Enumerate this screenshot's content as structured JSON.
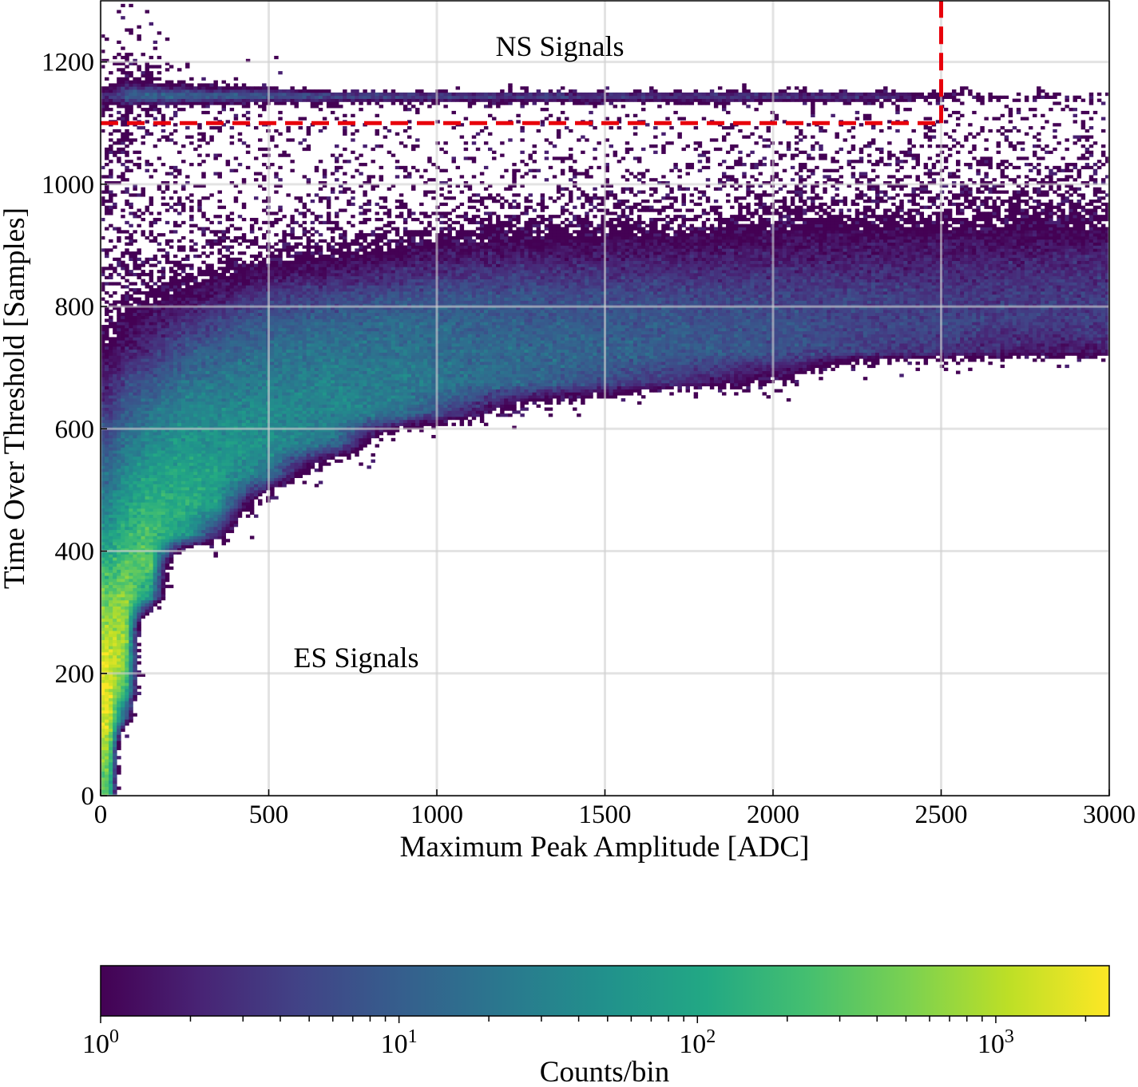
{
  "chart_data": {
    "type": "heatmap",
    "xlabel": "Maximum Peak Amplitude [ADC]",
    "ylabel": "Time Over Threshold [Samples]",
    "xlim": [
      0,
      3000
    ],
    "ylim": [
      0,
      1300
    ],
    "xticks": [
      0,
      500,
      1000,
      1500,
      2000,
      2500,
      3000
    ],
    "yticks": [
      0,
      200,
      400,
      600,
      800,
      1000,
      1200
    ],
    "grid": true,
    "annotations": [
      {
        "text": "NS Signals",
        "x": 1370,
        "y": 1225
      },
      {
        "text": "ES Signals",
        "x": 760,
        "y": 225
      }
    ],
    "cut_lines": {
      "color": "#e8000b",
      "style": "dashed",
      "horizontal": {
        "y": 1100,
        "x_from": 0,
        "x_to": 2500
      },
      "vertical": {
        "x": 2500,
        "y_from": 1100,
        "y_to": 1300
      }
    },
    "colorbar": {
      "label": "Counts/bin",
      "scale": "log",
      "range": [
        1,
        2400
      ],
      "ticks": [
        {
          "value": 1,
          "base": "10",
          "exp": "0"
        },
        {
          "value": 10,
          "base": "10",
          "exp": "1"
        },
        {
          "value": 100,
          "base": "10",
          "exp": "2"
        },
        {
          "value": 1000,
          "base": "10",
          "exp": "3"
        }
      ],
      "colormap": "viridis",
      "colormap_stops": [
        "#440154",
        "#482475",
        "#414487",
        "#355f8d",
        "#2a788e",
        "#21918c",
        "#22a884",
        "#44bf70",
        "#7ad151",
        "#bddf26",
        "#fde725"
      ]
    },
    "x_centers": [
      25,
      75,
      150,
      250,
      350,
      500,
      700,
      900,
      1100,
      1300,
      1500,
      1700,
      1900,
      2100,
      2300,
      2500,
      2700,
      2900
    ],
    "y_centers": [
      25,
      75,
      125,
      175,
      225,
      275,
      325,
      375,
      425,
      475,
      525,
      575,
      625,
      675,
      725,
      775,
      825,
      875,
      925,
      975,
      1025,
      1075,
      1125,
      1145,
      1170,
      1250
    ],
    "z_counts_per_bin": [
      [
        300,
        0,
        0,
        0,
        0,
        0,
        0,
        0,
        0,
        0,
        0,
        0,
        0,
        0,
        0,
        0,
        0,
        0
      ],
      [
        800,
        0,
        0,
        0,
        0,
        0,
        0,
        0,
        0,
        0,
        0,
        0,
        0,
        0,
        0,
        0,
        0,
        0
      ],
      [
        1500,
        5,
        0,
        0,
        0,
        0,
        0,
        0,
        0,
        0,
        0,
        0,
        0,
        0,
        0,
        0,
        0,
        0
      ],
      [
        1800,
        200,
        0,
        0,
        0,
        0,
        0,
        0,
        0,
        0,
        0,
        0,
        0,
        0,
        0,
        0,
        0,
        0
      ],
      [
        1500,
        600,
        0,
        0,
        0,
        0,
        0,
        0,
        0,
        0,
        0,
        0,
        0,
        0,
        0,
        0,
        0,
        0
      ],
      [
        900,
        800,
        0,
        0,
        0,
        0,
        0,
        0,
        0,
        0,
        0,
        0,
        0,
        0,
        0,
        0,
        0,
        0
      ],
      [
        400,
        600,
        50,
        0,
        0,
        0,
        0,
        0,
        0,
        0,
        0,
        0,
        0,
        0,
        0,
        0,
        0,
        0
      ],
      [
        150,
        300,
        300,
        0,
        0,
        0,
        0,
        0,
        0,
        0,
        0,
        0,
        0,
        0,
        0,
        0,
        0,
        0
      ],
      [
        60,
        150,
        250,
        60,
        2,
        0,
        0,
        0,
        0,
        0,
        0,
        0,
        0,
        0,
        0,
        0,
        0,
        0
      ],
      [
        30,
        80,
        150,
        150,
        60,
        0.05,
        0,
        0,
        0,
        0,
        0,
        0,
        0,
        0,
        0,
        0,
        0,
        0
      ],
      [
        15,
        40,
        80,
        100,
        80,
        20,
        0.02,
        0,
        0,
        0,
        0,
        0,
        0,
        0,
        0,
        0,
        0,
        0
      ],
      [
        8,
        20,
        40,
        60,
        55,
        50,
        15,
        0.02,
        0,
        0,
        0,
        0,
        0,
        0,
        0,
        0,
        0,
        0
      ],
      [
        4,
        10,
        20,
        35,
        35,
        40,
        35,
        18,
        2,
        0.1,
        0.02,
        0,
        0,
        0,
        0,
        0,
        0,
        0
      ],
      [
        2,
        5,
        8,
        18,
        22,
        28,
        30,
        25,
        18,
        12,
        6,
        3,
        1,
        0.3,
        0,
        0,
        0,
        0
      ],
      [
        1,
        2,
        3,
        8,
        12,
        18,
        20,
        20,
        16,
        14,
        12,
        10,
        8,
        6,
        4,
        3,
        2,
        1.5
      ],
      [
        0.6,
        1,
        1.5,
        3,
        5,
        9,
        12,
        14,
        12,
        10,
        9,
        8,
        7,
        6,
        5,
        5,
        4,
        4
      ],
      [
        0.4,
        0.6,
        0.7,
        1,
        1.5,
        3,
        4,
        6,
        6,
        6,
        5,
        5,
        4.5,
        4,
        4,
        3.5,
        3.5,
        3.5
      ],
      [
        0.3,
        0.4,
        0.4,
        0.5,
        0.5,
        0.8,
        1,
        1.5,
        2,
        2,
        2,
        2,
        2,
        2,
        2,
        2,
        2,
        2.2
      ],
      [
        0.3,
        0.3,
        0.3,
        0.3,
        0.3,
        0.3,
        0.4,
        0.5,
        0.6,
        0.7,
        0.8,
        0.8,
        0.9,
        1,
        1,
        1,
        1,
        1
      ],
      [
        0.3,
        0.3,
        0.2,
        0.2,
        0.2,
        0.2,
        0.25,
        0.3,
        0.3,
        0.3,
        0.35,
        0.4,
        0.4,
        0.5,
        0.5,
        0.5,
        0.5,
        0.5
      ],
      [
        0.3,
        0.3,
        0.2,
        0.2,
        0.2,
        0.15,
        0.15,
        0.15,
        0.2,
        0.2,
        0.2,
        0.2,
        0.25,
        0.25,
        0.3,
        0.3,
        0.3,
        0.3
      ],
      [
        0.3,
        0.5,
        0.2,
        0.2,
        0.2,
        0.15,
        0.1,
        0.1,
        0.1,
        0.1,
        0.12,
        0.15,
        0.15,
        0.15,
        0.15,
        0.2,
        0.2,
        0.2
      ],
      [
        0.4,
        0.8,
        0.3,
        0.2,
        0.2,
        0.15,
        0.1,
        0.1,
        0.1,
        0.1,
        0.1,
        0.1,
        0.1,
        0.1,
        0.1,
        0.1,
        0.1,
        0.1
      ],
      [
        3,
        10,
        20,
        15,
        12,
        10,
        8,
        7,
        6,
        6,
        5,
        5,
        5,
        4,
        4,
        1.5,
        0.8,
        0.5
      ],
      [
        0.3,
        1,
        0.5,
        0.2,
        0.1,
        0.1,
        0,
        0,
        0,
        0,
        0,
        0,
        0,
        0,
        0,
        0,
        0,
        0
      ],
      [
        0.05,
        0.2,
        0.05,
        0,
        0,
        0,
        0,
        0,
        0,
        0,
        0,
        0,
        0,
        0,
        0,
        0,
        0,
        0
      ]
    ]
  }
}
